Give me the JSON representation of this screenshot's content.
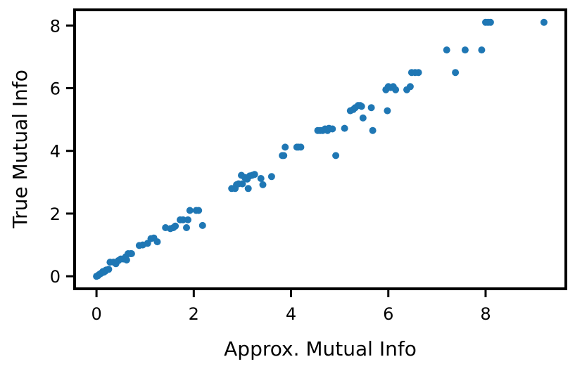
{
  "chart_data": {
    "type": "scatter",
    "title": "",
    "xlabel": "Approx. Mutual Info",
    "ylabel": "True Mutual Info",
    "xlim": [
      -0.45,
      9.65
    ],
    "ylim": [
      -0.4,
      8.5
    ],
    "xticks": [
      0,
      2,
      4,
      6,
      8
    ],
    "yticks": [
      0,
      2,
      4,
      6,
      8
    ],
    "grid": false,
    "point_color": "#1f77b4",
    "points": [
      [
        0.0,
        0.0
      ],
      [
        0.03,
        0.02
      ],
      [
        0.05,
        0.05
      ],
      [
        0.08,
        0.08
      ],
      [
        0.1,
        0.1
      ],
      [
        0.13,
        0.15
      ],
      [
        0.15,
        0.13
      ],
      [
        0.18,
        0.16
      ],
      [
        0.2,
        0.2
      ],
      [
        0.25,
        0.22
      ],
      [
        0.28,
        0.45
      ],
      [
        0.35,
        0.45
      ],
      [
        0.4,
        0.4
      ],
      [
        0.45,
        0.5
      ],
      [
        0.5,
        0.55
      ],
      [
        0.55,
        0.55
      ],
      [
        0.6,
        0.62
      ],
      [
        0.62,
        0.52
      ],
      [
        0.65,
        0.72
      ],
      [
        0.7,
        0.72
      ],
      [
        0.72,
        0.72
      ],
      [
        0.88,
        0.98
      ],
      [
        0.95,
        1.0
      ],
      [
        1.05,
        1.05
      ],
      [
        1.12,
        1.2
      ],
      [
        1.18,
        1.22
      ],
      [
        1.25,
        1.1
      ],
      [
        1.42,
        1.55
      ],
      [
        1.52,
        1.52
      ],
      [
        1.58,
        1.55
      ],
      [
        1.62,
        1.6
      ],
      [
        1.72,
        1.8
      ],
      [
        1.78,
        1.8
      ],
      [
        1.85,
        1.55
      ],
      [
        1.88,
        1.8
      ],
      [
        1.92,
        2.1
      ],
      [
        2.05,
        2.1
      ],
      [
        2.1,
        2.1
      ],
      [
        2.18,
        1.62
      ],
      [
        2.78,
        2.8
      ],
      [
        2.85,
        2.8
      ],
      [
        2.88,
        2.92
      ],
      [
        2.92,
        2.95
      ],
      [
        2.98,
        3.22
      ],
      [
        3.0,
        2.95
      ],
      [
        3.05,
        3.15
      ],
      [
        3.1,
        3.1
      ],
      [
        3.12,
        2.8
      ],
      [
        3.15,
        3.2
      ],
      [
        3.2,
        3.22
      ],
      [
        3.25,
        3.25
      ],
      [
        3.38,
        3.12
      ],
      [
        3.42,
        2.92
      ],
      [
        3.6,
        3.18
      ],
      [
        3.82,
        3.85
      ],
      [
        3.85,
        3.85
      ],
      [
        3.88,
        4.12
      ],
      [
        4.12,
        4.12
      ],
      [
        4.15,
        4.12
      ],
      [
        4.2,
        4.12
      ],
      [
        4.55,
        4.65
      ],
      [
        4.6,
        4.65
      ],
      [
        4.65,
        4.65
      ],
      [
        4.7,
        4.7
      ],
      [
        4.75,
        4.65
      ],
      [
        4.78,
        4.72
      ],
      [
        4.85,
        4.7
      ],
      [
        4.92,
        3.85
      ],
      [
        5.1,
        4.72
      ],
      [
        5.22,
        5.28
      ],
      [
        5.28,
        5.32
      ],
      [
        5.32,
        5.38
      ],
      [
        5.38,
        5.45
      ],
      [
        5.42,
        5.45
      ],
      [
        5.45,
        5.42
      ],
      [
        5.48,
        5.05
      ],
      [
        5.65,
        5.38
      ],
      [
        5.68,
        4.65
      ],
      [
        5.95,
        5.95
      ],
      [
        5.98,
        5.28
      ],
      [
        6.0,
        6.05
      ],
      [
        6.05,
        6.02
      ],
      [
        6.1,
        6.05
      ],
      [
        6.15,
        5.95
      ],
      [
        6.38,
        5.95
      ],
      [
        6.45,
        6.05
      ],
      [
        6.48,
        6.5
      ],
      [
        6.55,
        6.5
      ],
      [
        6.62,
        6.5
      ],
      [
        7.2,
        7.22
      ],
      [
        7.38,
        6.5
      ],
      [
        7.58,
        7.22
      ],
      [
        7.92,
        7.22
      ],
      [
        8.0,
        8.1
      ],
      [
        8.05,
        8.1
      ],
      [
        8.1,
        8.1
      ],
      [
        9.2,
        8.1
      ]
    ]
  }
}
